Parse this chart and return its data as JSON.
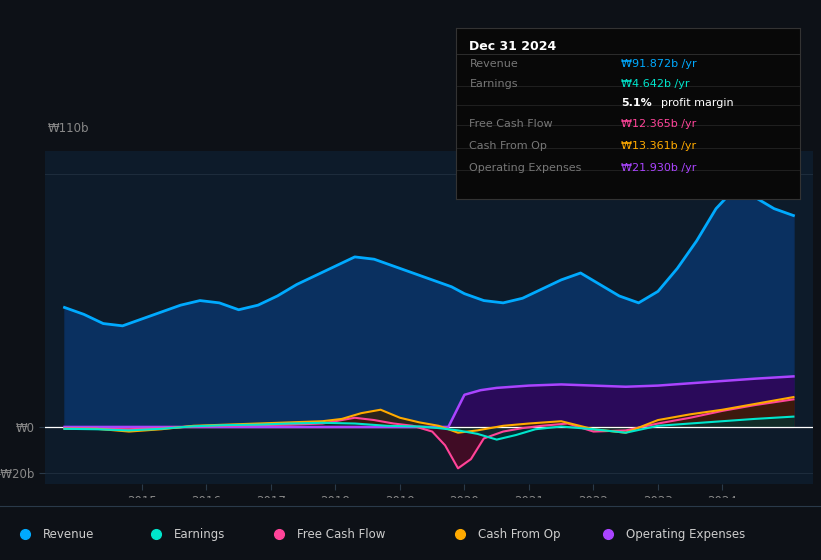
{
  "bg_color": "#0d1117",
  "plot_bg_color": "#0d1b2a",
  "ylim": [
    -25,
    120
  ],
  "xlim": [
    2013.5,
    2025.4
  ],
  "ytick_positions": [
    -20,
    0
  ],
  "ytick_labels": [
    "-₩20b",
    "₩0"
  ],
  "ytop_label": "₩110b",
  "xticks": [
    2015,
    2016,
    2017,
    2018,
    2019,
    2020,
    2021,
    2022,
    2023,
    2024
  ],
  "revenue_x": [
    2013.8,
    2014.1,
    2014.4,
    2014.7,
    2015.0,
    2015.3,
    2015.6,
    2015.9,
    2016.2,
    2016.5,
    2016.8,
    2017.1,
    2017.4,
    2017.7,
    2018.0,
    2018.3,
    2018.6,
    2018.9,
    2019.2,
    2019.5,
    2019.8,
    2020.0,
    2020.3,
    2020.6,
    2020.9,
    2021.2,
    2021.5,
    2021.8,
    2022.1,
    2022.4,
    2022.7,
    2023.0,
    2023.3,
    2023.6,
    2023.9,
    2024.2,
    2024.5,
    2024.8,
    2025.1
  ],
  "revenue_y": [
    52,
    49,
    45,
    44,
    47,
    50,
    53,
    55,
    54,
    51,
    53,
    57,
    62,
    66,
    70,
    74,
    73,
    70,
    67,
    64,
    61,
    58,
    55,
    54,
    56,
    60,
    64,
    67,
    62,
    57,
    54,
    59,
    69,
    81,
    95,
    104,
    100,
    95,
    92
  ],
  "earnings_x": [
    2013.8,
    2014.3,
    2014.8,
    2015.3,
    2015.8,
    2016.3,
    2016.8,
    2017.3,
    2017.8,
    2018.3,
    2018.8,
    2019.3,
    2019.6,
    2019.9,
    2020.2,
    2020.5,
    2020.8,
    2021.1,
    2021.5,
    2022.0,
    2022.5,
    2023.0,
    2023.5,
    2024.0,
    2024.5,
    2025.1
  ],
  "earnings_y": [
    -0.8,
    -1.0,
    -1.5,
    -0.8,
    0.3,
    0.8,
    1.0,
    1.5,
    1.8,
    1.5,
    0.5,
    0.2,
    -0.5,
    -1.5,
    -3.0,
    -5.5,
    -3.5,
    -1.0,
    0.2,
    -1.0,
    -2.5,
    0.5,
    1.5,
    2.5,
    3.5,
    4.5
  ],
  "fcf_x": [
    2013.8,
    2014.3,
    2014.8,
    2015.3,
    2015.8,
    2016.3,
    2016.8,
    2017.3,
    2017.8,
    2018.0,
    2018.3,
    2018.6,
    2018.9,
    2019.2,
    2019.5,
    2019.7,
    2019.9,
    2020.1,
    2020.3,
    2020.6,
    2020.9,
    2021.2,
    2021.6,
    2022.0,
    2022.5,
    2023.0,
    2023.5,
    2024.0,
    2024.5,
    2025.1
  ],
  "fcf_y": [
    -0.5,
    -0.8,
    -1.0,
    -0.5,
    0.2,
    0.5,
    0.8,
    1.0,
    1.5,
    2.5,
    4.0,
    3.0,
    1.5,
    0.5,
    -2.0,
    -8.0,
    -18.0,
    -14.0,
    -5.0,
    -2.0,
    -0.5,
    0.5,
    1.5,
    -2.0,
    -1.5,
    1.5,
    4.0,
    7.0,
    9.5,
    12.0
  ],
  "cop_x": [
    2013.8,
    2014.3,
    2014.8,
    2015.3,
    2015.8,
    2016.3,
    2016.8,
    2017.3,
    2017.8,
    2018.1,
    2018.4,
    2018.7,
    2019.0,
    2019.3,
    2019.6,
    2019.9,
    2020.2,
    2020.6,
    2021.0,
    2021.5,
    2022.0,
    2022.5,
    2023.0,
    2023.5,
    2024.0,
    2024.5,
    2025.1
  ],
  "cop_y": [
    -0.8,
    -0.8,
    -2.0,
    -1.0,
    0.5,
    1.0,
    1.5,
    2.0,
    2.5,
    3.5,
    6.0,
    7.5,
    4.0,
    2.0,
    0.5,
    -2.5,
    -1.5,
    0.5,
    1.5,
    2.5,
    -1.0,
    -2.5,
    3.0,
    5.5,
    7.5,
    10.0,
    13.0
  ],
  "opex_x": [
    2013.8,
    2019.75,
    2020.0,
    2020.25,
    2020.5,
    2020.75,
    2021.0,
    2021.5,
    2022.0,
    2022.5,
    2023.0,
    2023.5,
    2024.0,
    2024.5,
    2025.1
  ],
  "opex_y": [
    0,
    0,
    14,
    16,
    17,
    17.5,
    18,
    18.5,
    18,
    17.5,
    18,
    19,
    20,
    21,
    22
  ],
  "revenue_color": "#00aaff",
  "revenue_fill": "#0a3060",
  "earnings_color": "#00e5cc",
  "fcf_color": "#ff4499",
  "cop_color": "#ffaa00",
  "opex_color": "#aa44ff",
  "opex_fill": "#2a0a5a",
  "legend": [
    {
      "label": "Revenue",
      "color": "#00aaff"
    },
    {
      "label": "Earnings",
      "color": "#00e5cc"
    },
    {
      "label": "Free Cash Flow",
      "color": "#ff4499"
    },
    {
      "label": "Cash From Op",
      "color": "#ffaa00"
    },
    {
      "label": "Operating Expenses",
      "color": "#aa44ff"
    }
  ],
  "tooltip_date": "Dec 31 2024",
  "tooltip_rows": [
    {
      "label": "Revenue",
      "value": "₩91.872b /yr",
      "color": "#00aaff",
      "bold_part": ""
    },
    {
      "label": "Earnings",
      "value": "₩4.642b /yr",
      "color": "#00e5cc",
      "bold_part": ""
    },
    {
      "label": "",
      "value": "5.1% profit margin",
      "color": "#ffffff",
      "bold_part": "5.1%"
    },
    {
      "label": "Free Cash Flow",
      "value": "₩12.365b /yr",
      "color": "#ff4499",
      "bold_part": ""
    },
    {
      "label": "Cash From Op",
      "value": "₩13.361b /yr",
      "color": "#ffaa00",
      "bold_part": ""
    },
    {
      "label": "Operating Expenses",
      "value": "₩21.930b /yr",
      "color": "#aa44ff",
      "bold_part": ""
    }
  ]
}
